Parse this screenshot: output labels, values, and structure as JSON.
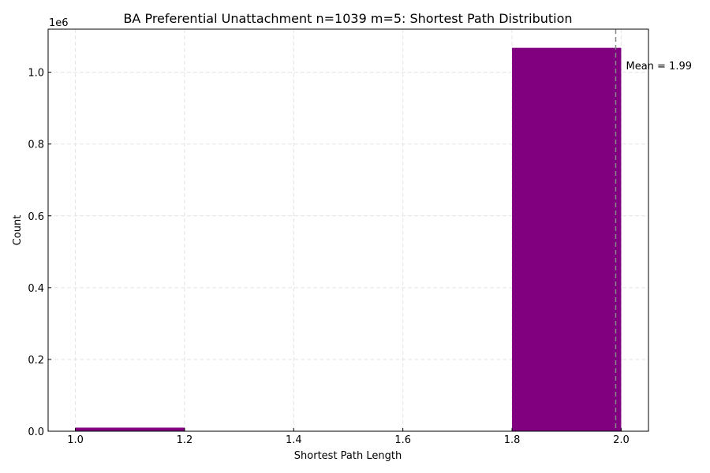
{
  "chart_data": {
    "type": "bar",
    "title": "BA Preferential Unattachment n=1039 m=5: Shortest Path Distribution",
    "xlabel": "Shortest Path Length",
    "ylabel": "Count",
    "y_scale_label": "1e6",
    "xlim": [
      0.95,
      2.05
    ],
    "ylim": [
      0,
      1120000
    ],
    "bar_color": "#800080",
    "bins": [
      {
        "x0": 1.0,
        "x1": 1.2,
        "value": 10000
      },
      {
        "x0": 1.8,
        "x1": 2.0,
        "value": 1068000
      }
    ],
    "x_ticks": [
      1.0,
      1.2,
      1.4,
      1.6,
      1.8,
      2.0
    ],
    "x_tick_labels": [
      "1.0",
      "1.2",
      "1.4",
      "1.6",
      "1.8",
      "2.0"
    ],
    "y_ticks": [
      0,
      200000,
      400000,
      600000,
      800000,
      1000000
    ],
    "y_tick_labels": [
      "0.0",
      "0.2",
      "0.4",
      "0.6",
      "0.8",
      "1.0"
    ],
    "mean_line": {
      "x": 1.99,
      "label": "Mean = 1.99",
      "color": "#888888",
      "style": "dashed"
    },
    "grid": true
  }
}
